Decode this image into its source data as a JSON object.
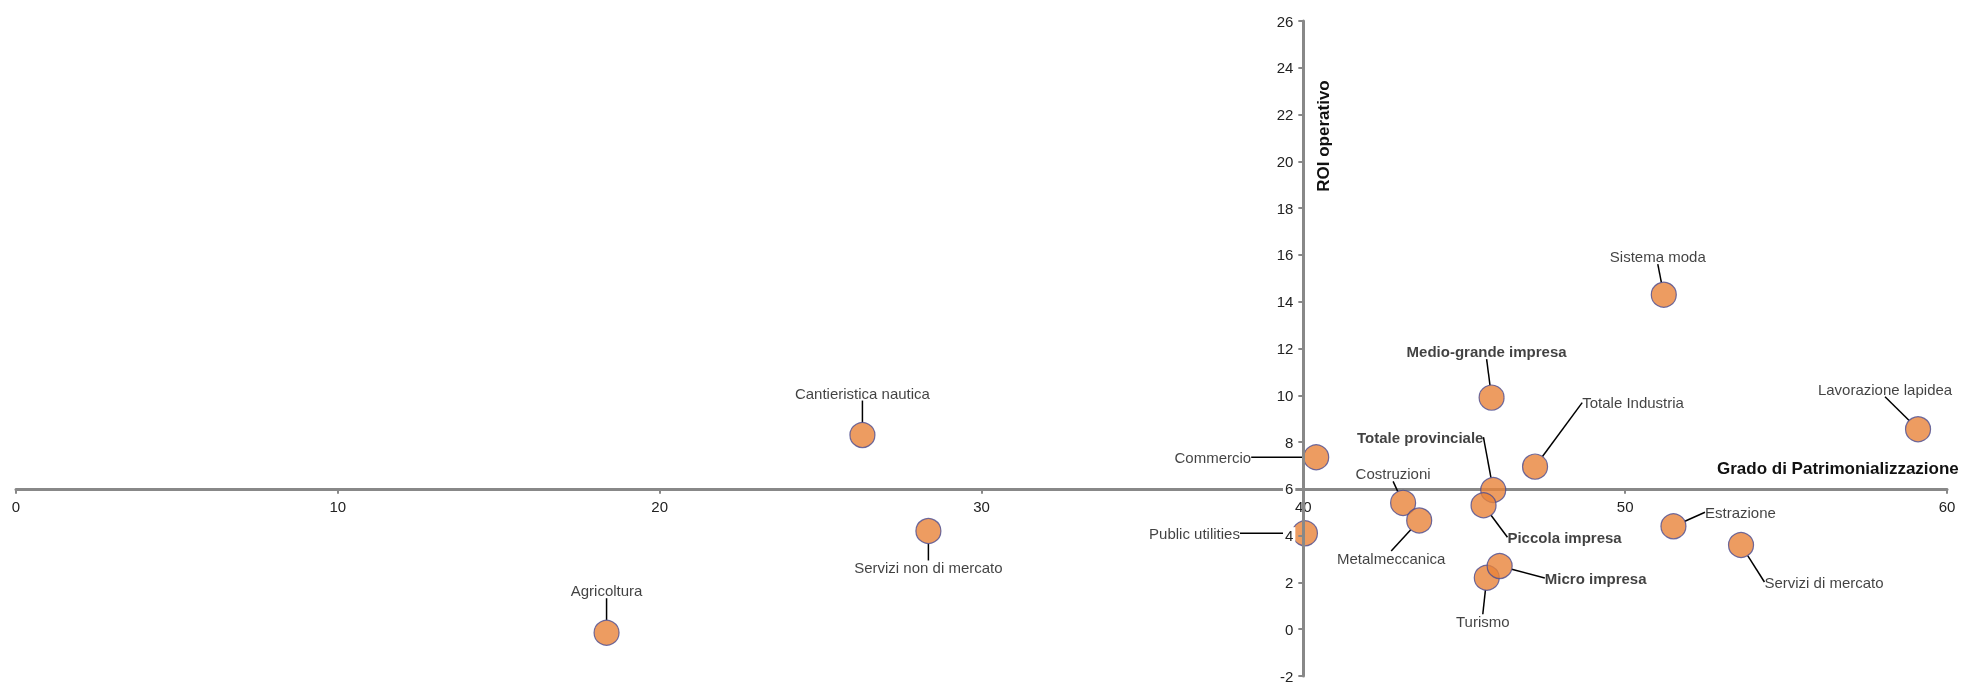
{
  "chart_data": {
    "type": "scatter",
    "xlabel": "Grado di Patrimonializzazione",
    "ylabel": "ROI operativo",
    "xlim": [
      0,
      60
    ],
    "xticks": [
      0,
      10,
      20,
      30,
      40,
      50,
      60
    ],
    "ylim": [
      -2,
      26
    ],
    "yticks": [
      -2,
      0,
      2,
      4,
      6,
      8,
      10,
      12,
      14,
      16,
      18,
      20,
      22,
      24,
      26
    ],
    "grid": false,
    "marker": "circle",
    "series": [
      {
        "color": "#e8833a",
        "x": [
          26.3,
          28.35,
          18.35,
          40.4,
          40.05,
          43.1,
          43.6,
          47.2,
          51.2,
          59.1,
          51.5,
          53.6,
          45.7
        ],
        "values": [
          8.3,
          4.2,
          -0.15,
          7.35,
          4.1,
          5.4,
          4.65,
          6.95,
          14.3,
          8.55,
          4.4,
          3.6,
          2.2
        ],
        "value_labels": [
          "Cantieristica nautica",
          "Servizi non di mercato",
          "Agricoltura",
          "Commercio",
          "Public utilities",
          "Costruzioni",
          "Metalmeccanica",
          "Totale Industria",
          "Sistema moda",
          "Lavorazione lapidea",
          "Estrazione",
          "Servizi di mercato",
          "Turismo"
        ]
      },
      {
        "color": "#e8833a",
        "x": [
          45.85,
          45.9,
          45.6,
          46.1
        ],
        "values": [
          9.9,
          5.95,
          5.3,
          2.7
        ],
        "value_labels": [
          "Medio-grande impresa",
          "Totale provinciale",
          "Piccola impresa",
          "Micro impresa"
        ]
      }
    ]
  }
}
